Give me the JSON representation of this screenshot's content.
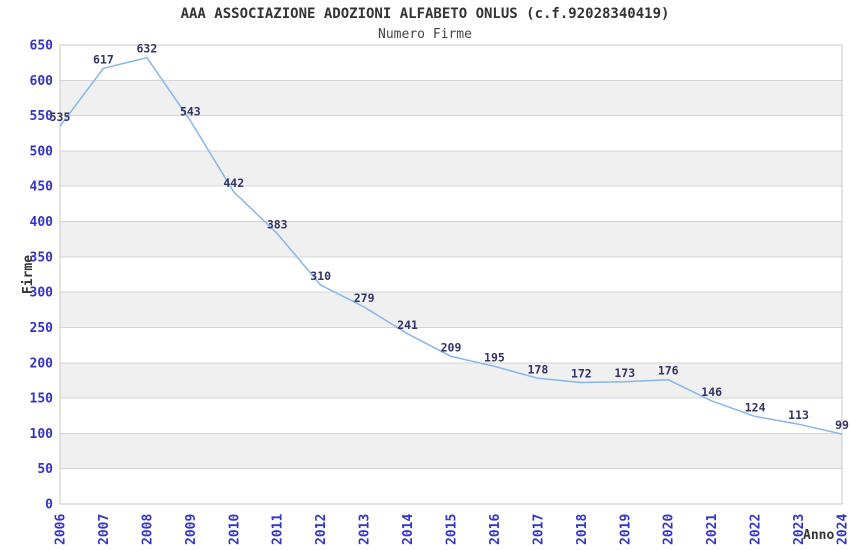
{
  "chart_data": {
    "type": "line",
    "title": "AAA ASSOCIAZIONE ADOZIONI ALFABETO ONLUS (c.f.92028340419)",
    "subtitle": "Numero Firme",
    "xlabel": "Anno",
    "ylabel": "Firme",
    "categories": [
      "2006",
      "2007",
      "2008",
      "2009",
      "2010",
      "2011",
      "2012",
      "2013",
      "2014",
      "2015",
      "2016",
      "2017",
      "2018",
      "2019",
      "2020",
      "2021",
      "2022",
      "2023",
      "2024"
    ],
    "values": [
      535,
      617,
      632,
      543,
      442,
      383,
      310,
      279,
      241,
      209,
      195,
      178,
      172,
      173,
      176,
      146,
      124,
      113,
      99
    ],
    "ylim": [
      0,
      650
    ],
    "ytick_step": 50,
    "grid": true,
    "legend_position": "none",
    "band_fill": "alternating-horizontal",
    "colors": {
      "line": "#85b7ea",
      "tick_label": "#3333cc",
      "data_label": "#333366",
      "band_alt": "#f0f0f0",
      "band_main": "#ffffff",
      "gridline": "#d4d4d4",
      "plot_border": "#c8c8c8",
      "title": "#333333",
      "axis_title": "#333333"
    }
  }
}
